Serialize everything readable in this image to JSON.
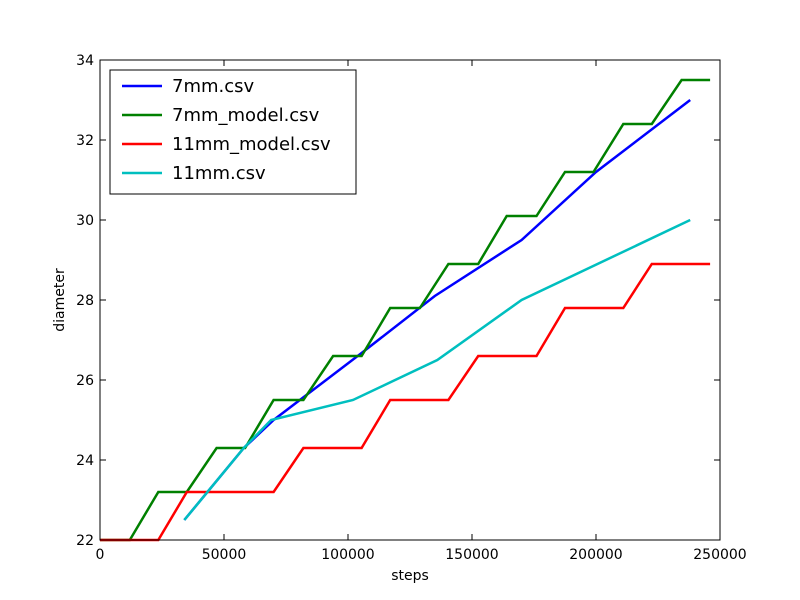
{
  "chart_data": {
    "type": "line",
    "title": "",
    "xlabel": "steps",
    "ylabel": "diameter",
    "xlim": [
      0,
      250000
    ],
    "ylim": [
      22,
      34
    ],
    "xticks": [
      0,
      50000,
      100000,
      150000,
      200000,
      250000
    ],
    "xtick_labels": [
      "0",
      "50000",
      "100000",
      "150000",
      "200000",
      "250000"
    ],
    "yticks": [
      22,
      24,
      26,
      28,
      30,
      32,
      34
    ],
    "ytick_labels": [
      "22",
      "24",
      "26",
      "28",
      "30",
      "32",
      "34"
    ],
    "grid": false,
    "legend_position": "top-left",
    "series": [
      {
        "name": "7mm.csv",
        "color": "#0000ff",
        "x": [
          34000,
          58000,
          70000,
          106000,
          135000,
          170000,
          200000,
          238000
        ],
        "y": [
          22.5,
          24.3,
          25.0,
          26.7,
          28.1,
          29.5,
          31.2,
          33.0
        ]
      },
      {
        "name": "7mm_model.csv",
        "color": "#008000",
        "x": [
          0,
          12000,
          23500,
          35000,
          47000,
          58500,
          70000,
          82000,
          94000,
          105500,
          117000,
          129000,
          140500,
          152500,
          164000,
          176000,
          187500,
          199000,
          211000,
          222500,
          234500,
          246000
        ],
        "y": [
          22.0,
          22.0,
          23.2,
          23.2,
          24.3,
          24.3,
          25.5,
          25.5,
          26.6,
          26.6,
          27.8,
          27.8,
          28.9,
          28.9,
          30.1,
          30.1,
          31.2,
          31.2,
          32.4,
          32.4,
          33.5,
          33.5
        ]
      },
      {
        "name": "11mm_model.csv",
        "color": "#ff0000",
        "x": [
          0,
          23500,
          35000,
          70000,
          82000,
          105500,
          117000,
          140500,
          152500,
          176000,
          187500,
          211000,
          222500,
          246000
        ],
        "y": [
          22.0,
          22.0,
          23.2,
          23.2,
          24.3,
          24.3,
          25.5,
          25.5,
          26.6,
          26.6,
          27.8,
          27.8,
          28.9,
          28.9
        ]
      },
      {
        "name": "11mm.csv",
        "color": "#00bfbf",
        "x": [
          34000,
          58000,
          69000,
          102000,
          136000,
          170000,
          238000
        ],
        "y": [
          22.5,
          24.3,
          25.0,
          25.5,
          26.5,
          28.0,
          30.0
        ]
      }
    ]
  }
}
